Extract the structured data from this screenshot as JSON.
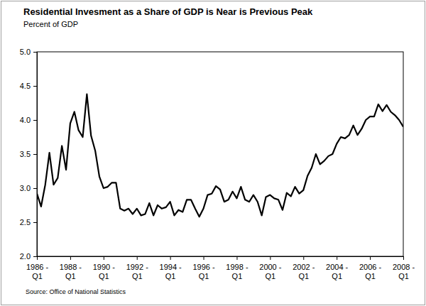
{
  "chart_data": {
    "type": "line",
    "title": "Residential Invesment as a Share of GDP is Near is Previous Peak",
    "subtitle": "Percent of GDP",
    "source": "Source: Office of National Statistics",
    "color": "#000000",
    "grid": false,
    "categories": [
      "1986 - Q1",
      null,
      null,
      null,
      null,
      null,
      null,
      null,
      "1988 - Q1",
      null,
      null,
      null,
      null,
      null,
      null,
      null,
      "1990 - Q1",
      null,
      null,
      null,
      null,
      null,
      null,
      null,
      "1992 - Q1",
      null,
      null,
      null,
      null,
      null,
      null,
      null,
      "1994 - Q1",
      null,
      null,
      null,
      null,
      null,
      null,
      null,
      "1996 - Q1",
      null,
      null,
      null,
      null,
      null,
      null,
      null,
      "1998 - Q1",
      null,
      null,
      null,
      null,
      null,
      null,
      null,
      "2000 - Q1",
      null,
      null,
      null,
      null,
      null,
      null,
      null,
      "2002 - Q1",
      null,
      null,
      null,
      null,
      null,
      null,
      null,
      "2004 - Q1",
      null,
      null,
      null,
      null,
      null,
      null,
      null,
      "2006 - Q1",
      null,
      null,
      null,
      null,
      null,
      null,
      null,
      "2008 - Q1"
    ],
    "values": [
      2.92,
      2.73,
      3.05,
      3.52,
      3.05,
      3.15,
      3.62,
      3.27,
      3.95,
      4.12,
      3.85,
      3.75,
      4.38,
      3.77,
      3.55,
      3.17,
      3.0,
      3.02,
      3.08,
      3.08,
      2.7,
      2.67,
      2.7,
      2.62,
      2.7,
      2.6,
      2.62,
      2.78,
      2.6,
      2.75,
      2.7,
      2.72,
      2.8,
      2.6,
      2.68,
      2.65,
      2.83,
      2.83,
      2.7,
      2.58,
      2.7,
      2.9,
      2.92,
      3.03,
      2.98,
      2.8,
      2.83,
      2.95,
      2.85,
      3.02,
      2.83,
      2.8,
      2.9,
      2.8,
      2.6,
      2.87,
      2.9,
      2.85,
      2.83,
      2.68,
      2.93,
      2.88,
      3.02,
      2.92,
      2.97,
      3.18,
      3.3,
      3.5,
      3.35,
      3.4,
      3.47,
      3.5,
      3.65,
      3.75,
      3.73,
      3.78,
      3.92,
      3.78,
      3.87,
      4.0,
      4.05,
      4.05,
      4.23,
      4.13,
      4.22,
      4.12,
      4.07,
      4.0,
      3.9
    ],
    "ylim": [
      2,
      5
    ],
    "yticks": [
      {
        "value": 2,
        "label": "2.0"
      },
      2.5,
      {
        "value": 3,
        "label": "3.0"
      },
      3.5,
      {
        "value": 4,
        "label": "4.0"
      },
      4.5,
      {
        "value": 5,
        "label": "5.0"
      }
    ]
  }
}
